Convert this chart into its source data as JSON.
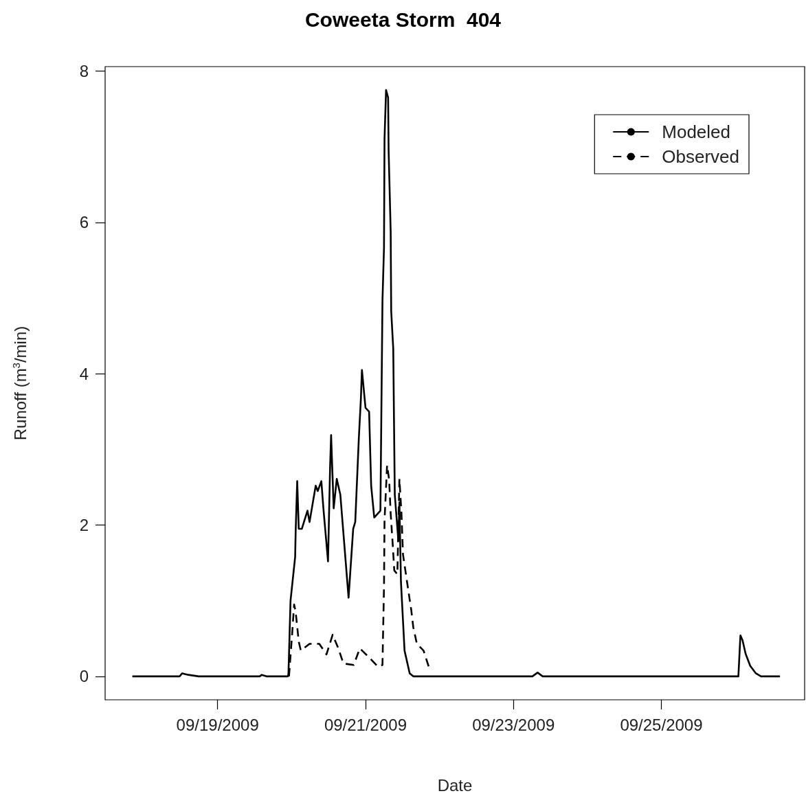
{
  "chart_data": {
    "type": "line",
    "title": "Coweeta Storm  404",
    "xlabel": "Date",
    "ylabel": "Runoff (m$^{3}$/min)",
    "xlim": [
      "2009-09-17T11:30",
      "2009-09-26T22:30"
    ],
    "xticks": [
      {
        "value": "2009-09-19",
        "label": "09/19/2009"
      },
      {
        "value": "2009-09-21",
        "label": "09/21/2009"
      },
      {
        "value": "2009-09-23",
        "label": "09/23/2009"
      },
      {
        "value": "2009-09-25",
        "label": "09/25/2009"
      }
    ],
    "ylim": [
      -0.31,
      8.06
    ],
    "yticks": [
      0,
      2,
      4,
      6,
      8
    ],
    "grid": false,
    "legend": "top right",
    "marker": "none",
    "series": [
      {
        "name": "Modeled",
        "color": "#000000",
        "line_style": "solid",
        "x": [
          "2009-09-17T20:20",
          "2009-09-18T11:40",
          "2009-09-18T12:30",
          "2009-09-18T14:30",
          "2009-09-18T17:50",
          "2009-09-19T13:40",
          "2009-09-19T14:20",
          "2009-09-19T15:50",
          "2009-09-19T22:50",
          "2009-09-19T23:00",
          "2009-09-19T23:40",
          "2009-09-20T01:10",
          "2009-09-20T01:20",
          "2009-09-20T01:50",
          "2009-09-20T02:20",
          "2009-09-20T03:20",
          "2009-09-20T05:10",
          "2009-09-20T05:50",
          "2009-09-20T07:50",
          "2009-09-20T08:30",
          "2009-09-20T09:40",
          "2009-09-20T10:20",
          "2009-09-20T11:50",
          "2009-09-20T12:30",
          "2009-09-20T12:50",
          "2009-09-20T13:40",
          "2009-09-20T14:40",
          "2009-09-20T15:50",
          "2009-09-20T18:30",
          "2009-09-20T20:00",
          "2009-09-20T20:40",
          "2009-09-20T21:50",
          "2009-09-20T22:30",
          "2009-09-20T22:50",
          "2009-09-21T00:00",
          "2009-09-21T01:10",
          "2009-09-21T01:50",
          "2009-09-21T02:50",
          "2009-09-21T04:50",
          "2009-09-21T05:10",
          "2009-09-21T05:30",
          "2009-09-21T06:00",
          "2009-09-21T06:10",
          "2009-09-21T06:40",
          "2009-09-21T07:20",
          "2009-09-21T07:30",
          "2009-09-21T08:10",
          "2009-09-21T08:20",
          "2009-09-21T09:00",
          "2009-09-21T09:30",
          "2009-09-21T10:40",
          "2009-09-21T11:00",
          "2009-09-21T11:30",
          "2009-09-21T12:40",
          "2009-09-21T14:20",
          "2009-09-21T15:30",
          "2009-09-23T06:10",
          "2009-09-23T07:50",
          "2009-09-23T09:30",
          "2009-09-26T01:00",
          "2009-09-26T01:40",
          "2009-09-26T02:20",
          "2009-09-26T03:20",
          "2009-09-26T04:50",
          "2009-09-26T06:40",
          "2009-09-26T08:20",
          "2009-09-26T14:30"
        ],
        "values": [
          0,
          0,
          0.04,
          0.02,
          0,
          0,
          0.02,
          0,
          0,
          0.04,
          1.0,
          1.58,
          1.92,
          2.58,
          1.95,
          1.95,
          2.19,
          2.04,
          2.52,
          2.45,
          2.58,
          2.22,
          1.52,
          2.76,
          3.19,
          2.22,
          2.61,
          2.4,
          1.04,
          1.95,
          2.04,
          3.15,
          3.67,
          4.05,
          3.55,
          3.5,
          2.52,
          2.1,
          2.19,
          3.58,
          4.96,
          5.67,
          7.1,
          7.75,
          7.65,
          6.95,
          5.88,
          4.83,
          4.33,
          2.4,
          1.79,
          2.3,
          1.25,
          0.34,
          0.04,
          0,
          0,
          0.05,
          0,
          0,
          0.54,
          0.48,
          0.3,
          0.14,
          0.04,
          0,
          0
        ]
      },
      {
        "name": "Observed",
        "color": "#000000",
        "line_style": "dashed",
        "x": [
          "2009-09-19T23:10",
          "2009-09-20T00:10",
          "2009-09-20T00:50",
          "2009-09-20T01:20",
          "2009-09-20T02:20",
          "2009-09-20T03:00",
          "2009-09-20T05:50",
          "2009-09-20T09:00",
          "2009-09-20T11:20",
          "2009-09-20T13:20",
          "2009-09-20T15:10",
          "2009-09-20T16:50",
          "2009-09-20T20:10",
          "2009-09-20T22:10",
          "2009-09-21T01:10",
          "2009-09-21T04:00",
          "2009-09-21T05:30",
          "2009-09-21T06:00",
          "2009-09-21T06:10",
          "2009-09-21T07:00",
          "2009-09-21T07:40",
          "2009-09-21T08:10",
          "2009-09-21T08:50",
          "2009-09-21T09:20",
          "2009-09-21T10:20",
          "2009-09-21T11:00",
          "2009-09-21T11:40",
          "2009-09-21T12:10",
          "2009-09-21T13:50",
          "2009-09-21T14:50",
          "2009-09-21T15:30",
          "2009-09-21T16:40",
          "2009-09-21T18:50",
          "2009-09-21T20:30"
        ],
        "values": [
          0,
          0.55,
          0.95,
          0.85,
          0.46,
          0.34,
          0.43,
          0.43,
          0.29,
          0.55,
          0.37,
          0.17,
          0.15,
          0.37,
          0.25,
          0.13,
          0.15,
          1.19,
          2.06,
          2.79,
          2.6,
          2.15,
          1.74,
          1.4,
          1.35,
          2.61,
          2.15,
          1.61,
          1.15,
          0.88,
          0.65,
          0.43,
          0.34,
          0.13
        ]
      }
    ]
  }
}
